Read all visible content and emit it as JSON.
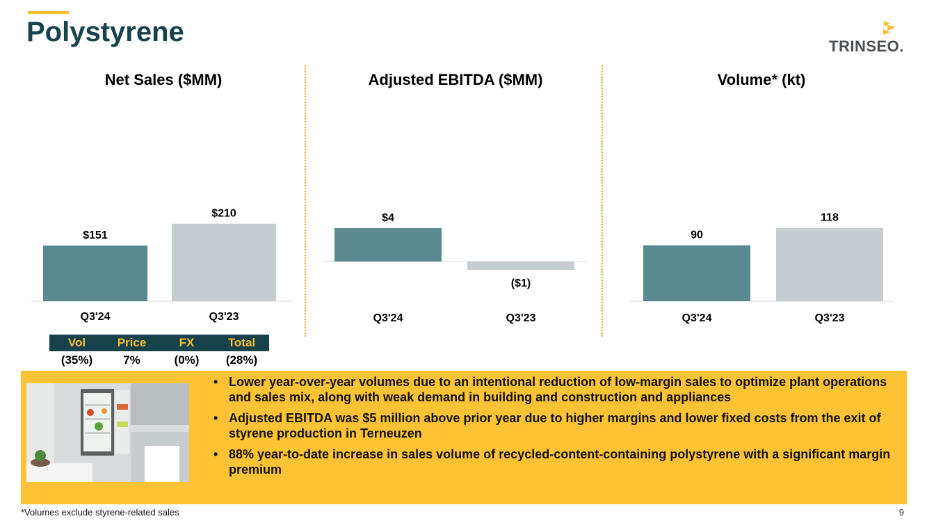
{
  "header": {
    "title": "Polystyrene",
    "logo_text": "TRINSEO."
  },
  "colors": {
    "accent": "#F7BE2E",
    "title": "#17414B",
    "bar_current": "#5A8A8F",
    "bar_prior": "#C5CDD0",
    "callout_bg": "#FDC334"
  },
  "chart_data": [
    {
      "type": "bar",
      "title": "Net Sales ($MM)",
      "categories": [
        "Q3'24",
        "Q3'23"
      ],
      "values": [
        151,
        210
      ],
      "data_labels": [
        "$151",
        "$210"
      ],
      "xlabel": "",
      "ylabel": "",
      "ylim": [
        0,
        220
      ],
      "grid": false
    },
    {
      "type": "bar",
      "title": "Adjusted EBITDA ($MM)",
      "categories": [
        "Q3'24",
        "Q3'23"
      ],
      "values": [
        4,
        -1
      ],
      "data_labels": [
        "$4",
        "($1)"
      ],
      "xlabel": "",
      "ylabel": "",
      "ylim": [
        -2,
        6
      ],
      "grid": false
    },
    {
      "type": "bar",
      "title": "Volume* (kt)",
      "categories": [
        "Q3'24",
        "Q3'23"
      ],
      "values": [
        90,
        118
      ],
      "data_labels": [
        "90",
        "118"
      ],
      "xlabel": "",
      "ylabel": "",
      "ylim": [
        0,
        220
      ],
      "grid": false
    }
  ],
  "bridge": {
    "headers": [
      "Vol",
      "Price",
      "FX",
      "Total"
    ],
    "values": [
      "(35%)",
      "7%",
      "(0%)",
      "(28%)"
    ]
  },
  "callout": {
    "image_icon": "open-refrigerator-kitchen-photo",
    "bullets": [
      "Lower year-over-year volumes due to an intentional reduction of low-margin sales to optimize plant operations and sales mix, along with weak demand in building and construction and appliances",
      "Adjusted EBITDA was $5 million above prior year due to higher margins and lower fixed costs from the exit of styrene production in Terneuzen",
      "88% year-to-date increase in sales volume of recycled-content-containing polystyrene with a significant margin premium"
    ]
  },
  "footer": {
    "footnote": "*Volumes exclude styrene-related sales",
    "page_number": "9"
  }
}
